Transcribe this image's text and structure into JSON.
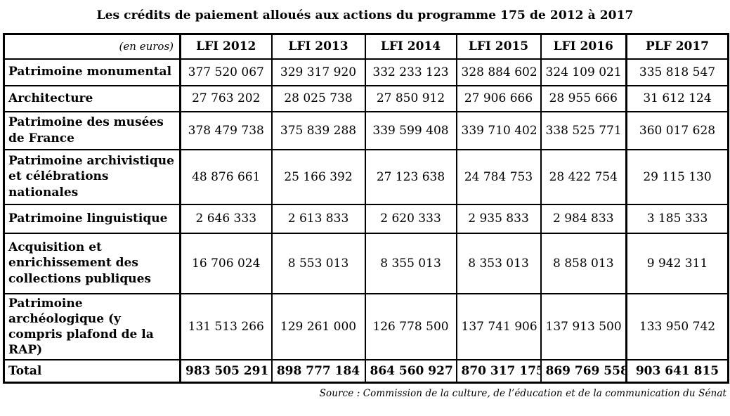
{
  "title": "Les crédits de paiement alloués aux actions du programme 175 de 2012 à 2017",
  "table": {
    "unit_label": "(en euros)",
    "columns": [
      "LFI 2012",
      "LFI 2013",
      "LFI 2014",
      "LFI 2015",
      "LFI 2016",
      "PLF 2017"
    ],
    "rows": [
      {
        "label": "Patrimoine monumental",
        "values": [
          "377 520 067",
          "329 317 920",
          "332 233 123",
          "328 884 602",
          "324 109 021",
          "335 818 547"
        ]
      },
      {
        "label": "Architecture",
        "values": [
          "27 763 202",
          "28 025 738",
          "27 850 912",
          "27 906 666",
          "28 955 666",
          "31 612 124"
        ]
      },
      {
        "label": "Patrimoine des musées de France",
        "values": [
          "378 479 738",
          "375 839 288",
          "339 599 408",
          "339 710 402",
          "338 525 771",
          "360 017 628"
        ]
      },
      {
        "label": "Patrimoine archivistique et célébrations nationales",
        "values": [
          "48 876 661",
          "25 166 392",
          "27 123 638",
          "24 784 753",
          "28 422 754",
          "29 115 130"
        ]
      },
      {
        "label": "Patrimoine linguistique",
        "values": [
          "2 646 333",
          "2 613 833",
          "2 620 333",
          "2 935 833",
          "2 984 833",
          "3 185 333"
        ]
      },
      {
        "label": "Acquisition et enrichissement des collections publiques",
        "values": [
          "16 706 024",
          "8 553 013",
          "8 355 013",
          "8 353 013",
          "8 858 013",
          "9 942 311"
        ]
      },
      {
        "label": "Patrimoine archéologique (y compris plafond de la RAP)",
        "values": [
          "131 513 266",
          "129 261 000",
          "126 778 500",
          "137 741 906",
          "137 913 500",
          "133 950 742"
        ]
      },
      {
        "label": "Total",
        "values": [
          "983 505 291",
          "898 777 184",
          "864 560 927",
          "870 317 175",
          "869 769 558",
          "903 641 815"
        ]
      }
    ]
  },
  "source": "Source : Commission de la culture, de l’éducation et de la communication du Sénat",
  "colors": {
    "text": "#000000",
    "border": "#000000",
    "background": "#ffffff"
  }
}
